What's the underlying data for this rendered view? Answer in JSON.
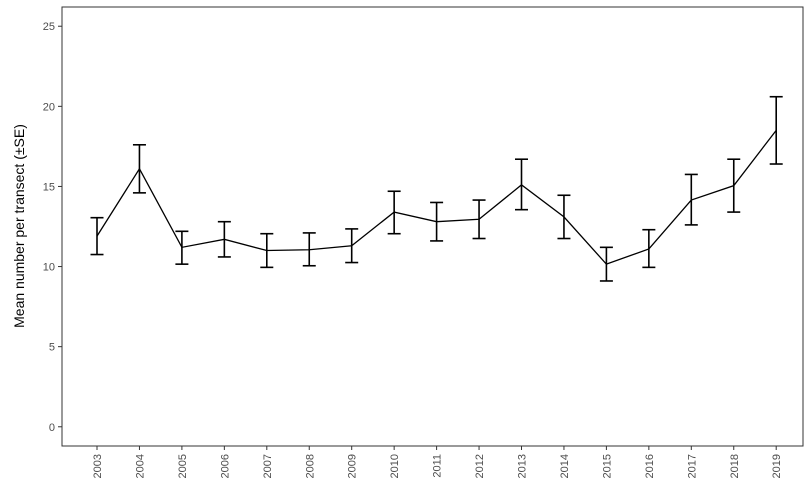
{
  "chart_data": {
    "type": "line",
    "title": "",
    "xlabel": "",
    "ylabel": "Mean number per transect (±SE)",
    "x": [
      "2003",
      "2004",
      "2005",
      "2006",
      "2007",
      "2008",
      "2009",
      "2010",
      "2011",
      "2012",
      "2013",
      "2014",
      "2015",
      "2016",
      "2017",
      "2018",
      "2019"
    ],
    "series": [
      {
        "values": [
          11.9,
          16.1,
          11.2,
          11.7,
          11.0,
          11.05,
          11.3,
          13.4,
          12.8,
          12.95,
          15.1,
          13.1,
          10.15,
          11.1,
          14.15,
          15.05,
          18.5
        ],
        "lower": [
          10.75,
          14.6,
          10.15,
          10.6,
          9.95,
          10.05,
          10.25,
          12.05,
          11.6,
          11.75,
          13.55,
          11.75,
          9.1,
          9.95,
          12.6,
          13.4,
          16.4
        ],
        "upper": [
          13.05,
          17.6,
          12.2,
          12.8,
          12.05,
          12.1,
          12.35,
          14.7,
          14.0,
          14.15,
          16.7,
          14.45,
          11.2,
          12.3,
          15.75,
          16.7,
          20.6
        ]
      }
    ],
    "yticks": [
      0,
      5,
      10,
      15,
      20,
      25
    ],
    "ylim": [
      -1.2,
      26.2
    ],
    "grid": false,
    "legend": "none",
    "colors": {
      "line": "#000000",
      "axis": "#333333",
      "tick_text": "#4d4d4d"
    }
  }
}
